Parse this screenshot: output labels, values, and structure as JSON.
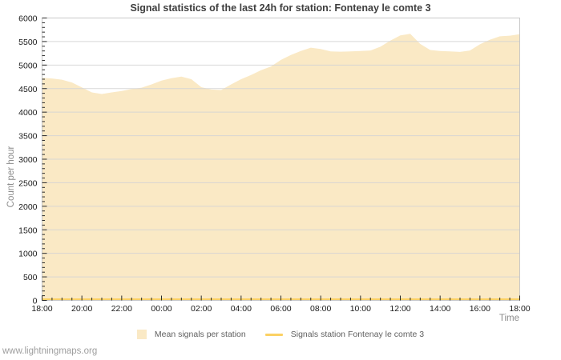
{
  "page": {
    "watermark": "www.lightningmaps.org"
  },
  "colors": {
    "background": "#ffffff",
    "grid": "#d4d4d4",
    "border": "#c8c8c8",
    "tick": "#2a2a2a",
    "title": "#3e3e3e",
    "muted_label": "#8c8c8c",
    "area_fill": "#fae9c5",
    "station_line": "#fbd164"
  },
  "chart_data": {
    "type": "area",
    "title": "Signal statistics of the last 24h for station: Fontenay le comte 3",
    "xlabel": "Time",
    "ylabel": "Count per hour",
    "ylim": [
      0,
      6000
    ],
    "y_tick_step": 500,
    "y_minor_step": 100,
    "grid": "horizontal-only",
    "legend_position": "bottom",
    "sample_interval_minutes": 30,
    "x_tick_labels": [
      "18:00",
      "20:00",
      "22:00",
      "00:00",
      "02:00",
      "04:00",
      "06:00",
      "08:00",
      "10:00",
      "12:00",
      "14:00",
      "16:00",
      "18:00"
    ],
    "x_minor_per_major": 4,
    "series": [
      {
        "name": "Mean signals per station",
        "type": "area",
        "color": "#fae9c5",
        "values": [
          4730,
          4715,
          4690,
          4630,
          4525,
          4420,
          4385,
          4420,
          4450,
          4490,
          4520,
          4590,
          4670,
          4720,
          4755,
          4700,
          4530,
          4480,
          4470,
          4590,
          4700,
          4790,
          4890,
          4970,
          5110,
          5215,
          5300,
          5370,
          5340,
          5290,
          5285,
          5290,
          5300,
          5310,
          5390,
          5520,
          5630,
          5665,
          5450,
          5320,
          5300,
          5290,
          5280,
          5310,
          5440,
          5540,
          5610,
          5625,
          5655
        ]
      },
      {
        "name": "Signals station Fontenay le comte 3",
        "type": "line",
        "color": "#fbd164",
        "constant_value": 0
      }
    ]
  }
}
